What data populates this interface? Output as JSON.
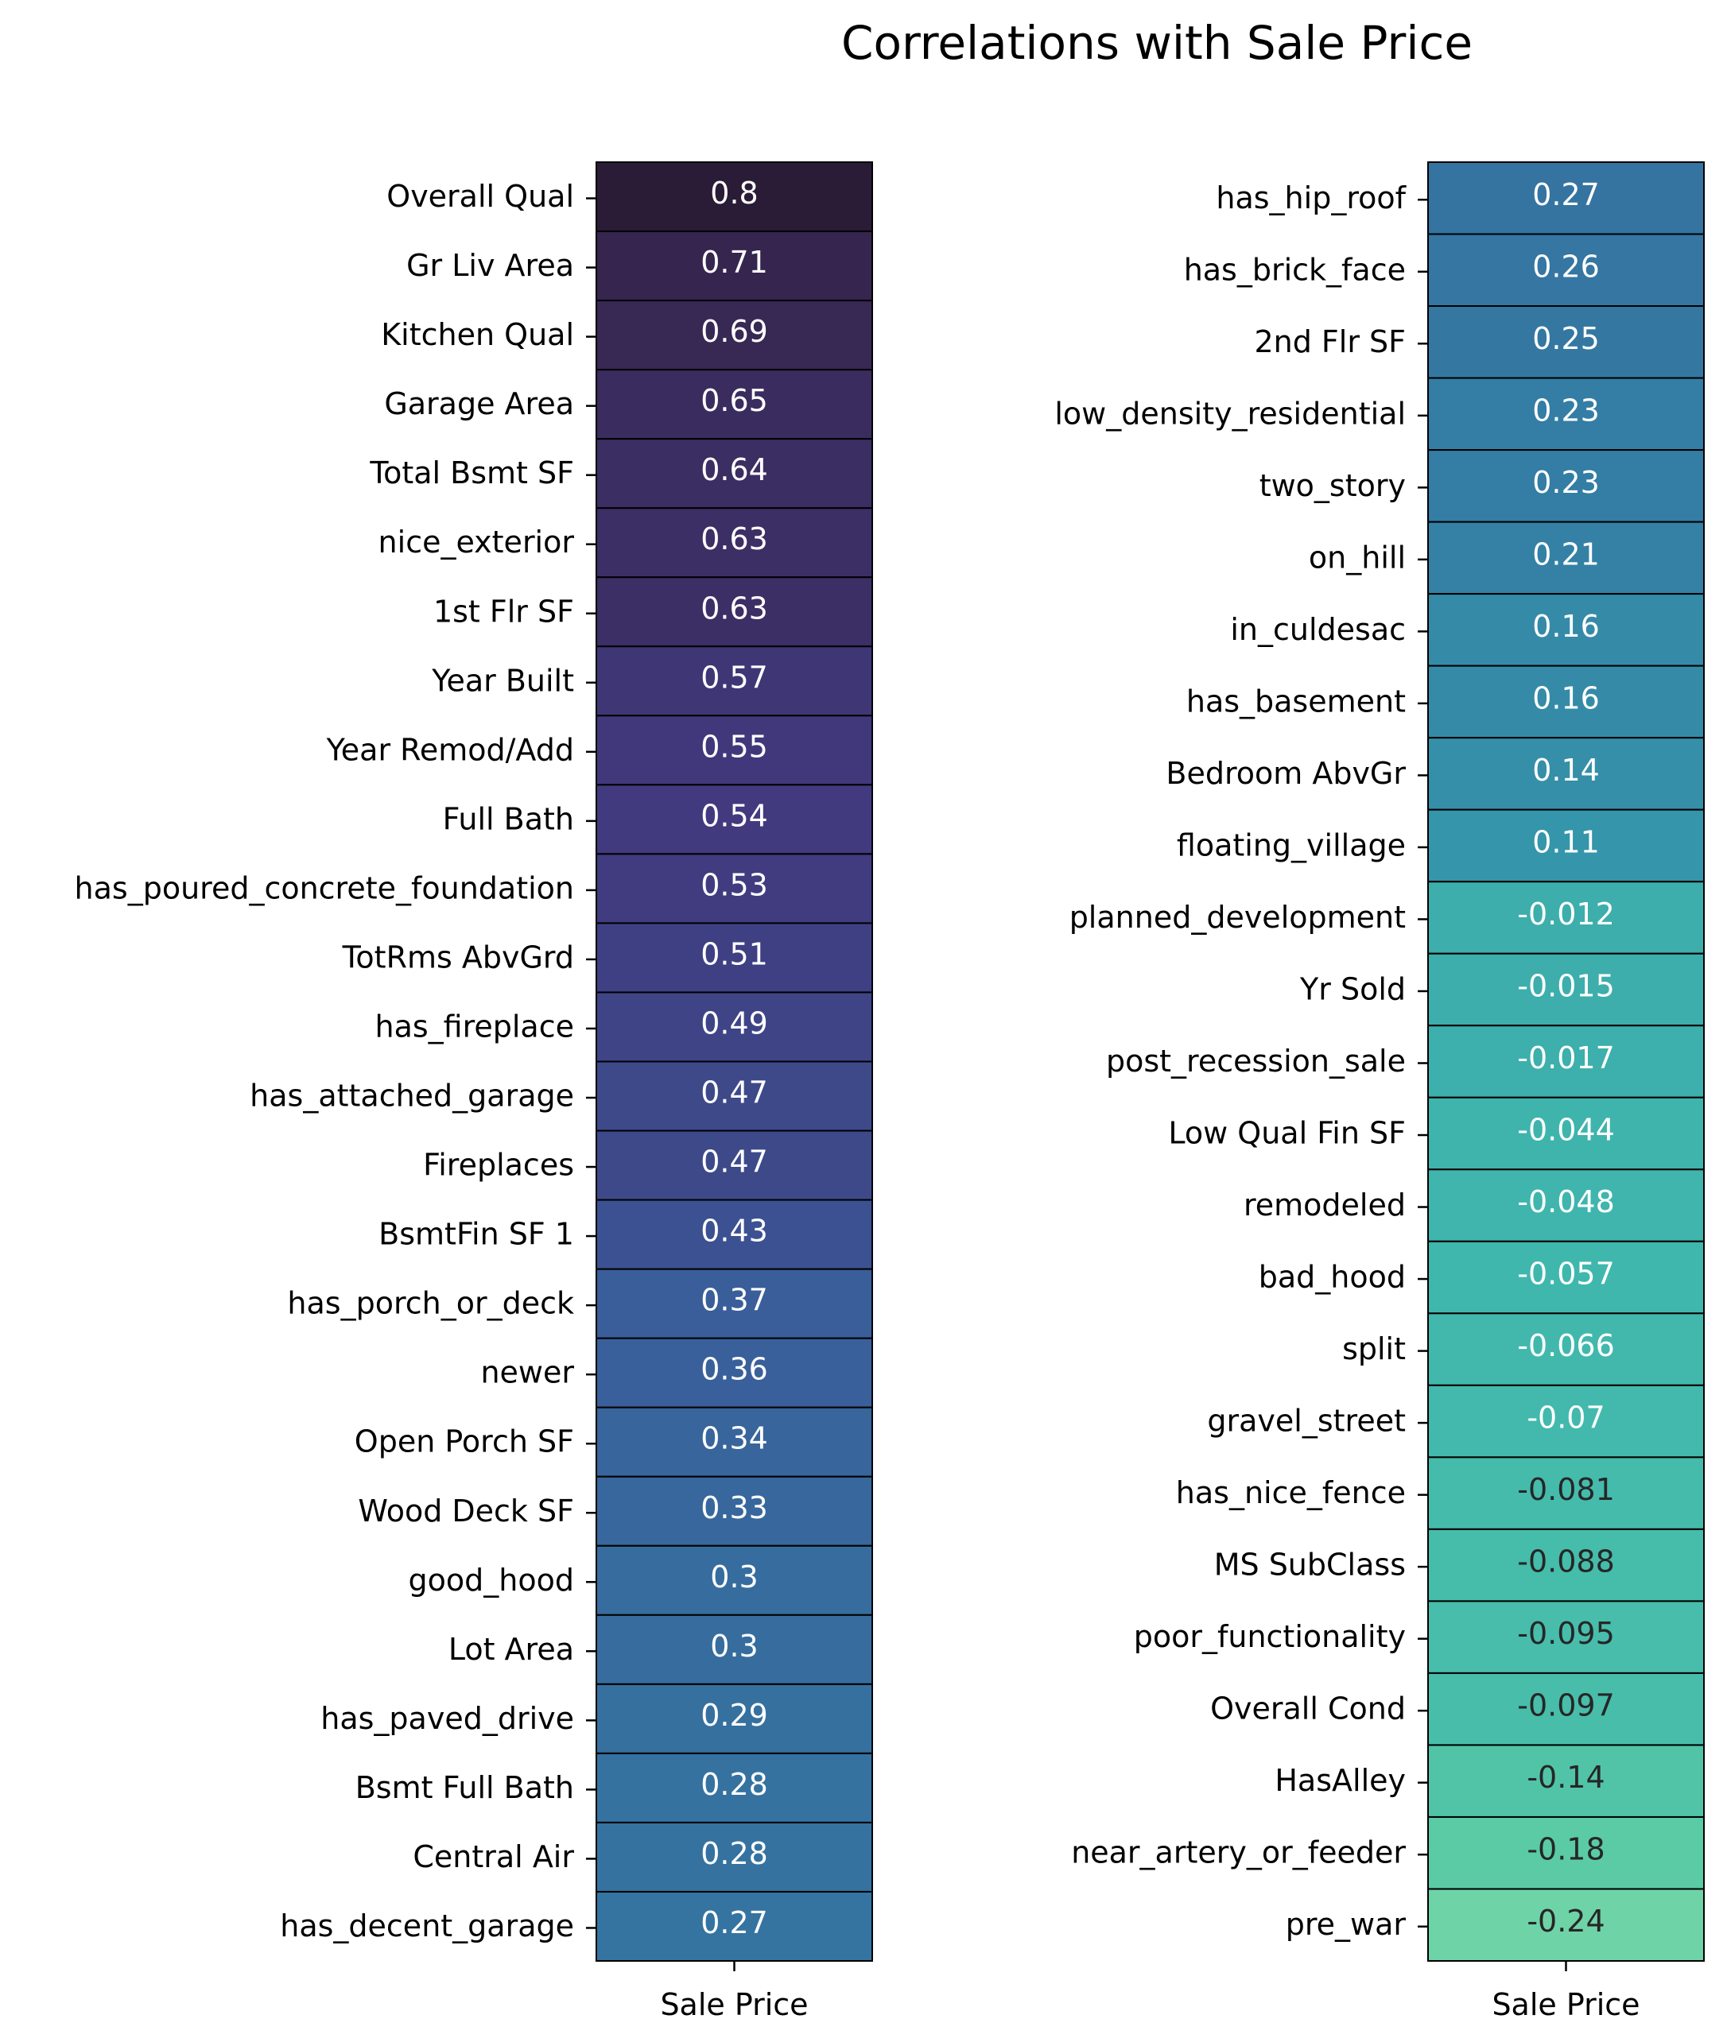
{
  "title": "Correlations with Sale Price",
  "chart_data": [
    {
      "type": "heatmap",
      "column_label": "Sale Price",
      "rows": [
        "Overall Qual",
        "Gr Liv Area",
        "Kitchen Qual",
        "Garage Area",
        "Total Bsmt SF",
        "nice_exterior",
        "1st Flr SF",
        "Year Built",
        "Year Remod/Add",
        "Full Bath",
        "has_poured_concrete_foundation",
        "TotRms AbvGrd",
        "has_fireplace",
        "has_attached_garage",
        "Fireplaces",
        "BsmtFin SF 1",
        "has_porch_or_deck",
        "newer",
        "Open Porch SF",
        "Wood Deck SF",
        "good_hood",
        "Lot Area",
        "has_paved_drive",
        "Bsmt Full Bath",
        "Central Air",
        "has_decent_garage"
      ],
      "values": [
        0.8,
        0.71,
        0.69,
        0.65,
        0.64,
        0.63,
        0.63,
        0.57,
        0.55,
        0.54,
        0.53,
        0.51,
        0.49,
        0.47,
        0.47,
        0.43,
        0.37,
        0.36,
        0.34,
        0.33,
        0.3,
        0.3,
        0.29,
        0.28,
        0.28,
        0.27
      ],
      "labels": [
        "0.8",
        "0.71",
        "0.69",
        "0.65",
        "0.64",
        "0.63",
        "0.63",
        "0.57",
        "0.55",
        "0.54",
        "0.53",
        "0.51",
        "0.49",
        "0.47",
        "0.47",
        "0.43",
        "0.37",
        "0.36",
        "0.34",
        "0.33",
        "0.3",
        "0.3",
        "0.29",
        "0.28",
        "0.28",
        "0.27"
      ]
    },
    {
      "type": "heatmap",
      "column_label": "Sale Price",
      "rows": [
        "has_hip_roof",
        "has_brick_face",
        "2nd Flr SF",
        "low_density_residential",
        "two_story",
        "on_hill",
        "in_culdesac",
        "has_basement",
        "Bedroom AbvGr",
        "floating_village",
        "planned_development",
        "Yr Sold",
        "post_recession_sale",
        "Low Qual Fin SF",
        "remodeled",
        "bad_hood",
        "split",
        "gravel_street",
        "has_nice_fence",
        "MS SubClass",
        "poor_functionality",
        "Overall Cond",
        "HasAlley",
        "near_artery_or_feeder",
        "pre_war"
      ],
      "values": [
        0.27,
        0.26,
        0.25,
        0.23,
        0.23,
        0.21,
        0.16,
        0.16,
        0.14,
        0.11,
        -0.012,
        -0.015,
        -0.017,
        -0.044,
        -0.048,
        -0.057,
        -0.066,
        -0.07,
        -0.081,
        -0.088,
        -0.095,
        -0.097,
        -0.14,
        -0.18,
        -0.24
      ],
      "labels": [
        "0.27",
        "0.26",
        "0.25",
        "0.23",
        "0.23",
        "0.21",
        "0.16",
        "0.16",
        "0.14",
        "0.11",
        "-0.012",
        "-0.015",
        "-0.017",
        "-0.044",
        "-0.048",
        "-0.057",
        "-0.066",
        "-0.07",
        "-0.081",
        "-0.088",
        "-0.095",
        "-0.097",
        "-0.14",
        "-0.18",
        "-0.24"
      ]
    }
  ]
}
